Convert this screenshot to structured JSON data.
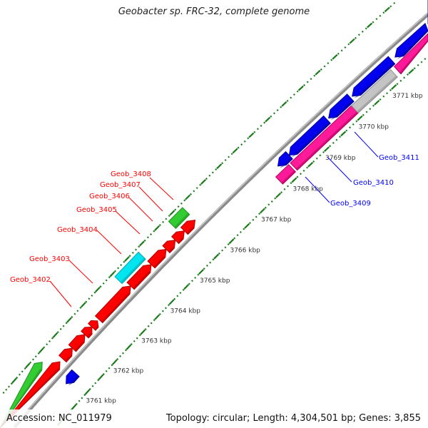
{
  "title": "Geobacter sp. FRC-32, complete genome",
  "footer": {
    "accession": "Accession: NC_011979",
    "summary": "Topology: circular; Length: 4,304,501 bp; Genes: 3,855"
  },
  "colors": {
    "backbone": "#8a8a8a",
    "ticks": "#1a7a1a",
    "forward_label": "#ff0000",
    "reverse_label": "#0000ff",
    "red": "#ff0000",
    "green": "#33cc33",
    "cyan": "#00e5f0",
    "blue": "#0000ee",
    "pink": "#ff1a99",
    "grey": "#c4c4c4"
  },
  "ticks": [
    {
      "kbp": 3761,
      "label": "3761 kbp"
    },
    {
      "kbp": 3762,
      "label": "3762 kbp"
    },
    {
      "kbp": 3763,
      "label": "3763 kbp"
    },
    {
      "kbp": 3764,
      "label": "3764 kbp"
    },
    {
      "kbp": 3765,
      "label": "3765 kbp"
    },
    {
      "kbp": 3766,
      "label": "3766 kbp"
    },
    {
      "kbp": 3767,
      "label": "3767 kbp"
    },
    {
      "kbp": 3768,
      "label": "3768 kbp"
    },
    {
      "kbp": 3769,
      "label": "3769 kbp"
    },
    {
      "kbp": 3770,
      "label": "3770 kbp"
    },
    {
      "kbp": 3771,
      "label": "3771 kbp"
    }
  ],
  "genes": [
    {
      "start": 3758.5,
      "end": 3760.8,
      "lane": "outer-forward",
      "strand": "+",
      "color": "green"
    },
    {
      "start": 3758.5,
      "end": 3761.1,
      "lane": "inner-forward",
      "strand": "+",
      "color": "red"
    },
    {
      "start": 3761.2,
      "end": 3761.55,
      "lane": "inner-forward",
      "strand": "+",
      "color": "red"
    },
    {
      "start": 3761.55,
      "end": 3762.0,
      "lane": "inner-forward",
      "strand": "+",
      "color": "red"
    },
    {
      "start": 3762.0,
      "end": 3762.25,
      "lane": "inner-forward",
      "strand": "+",
      "color": "red"
    },
    {
      "start": 3762.25,
      "end": 3762.45,
      "lane": "inner-forward",
      "strand": "+",
      "color": "red"
    },
    {
      "start": 3762.5,
      "end": 3763.6,
      "lane": "inner-forward",
      "strand": "+",
      "color": "red"
    },
    {
      "start": 3763.6,
      "end": 3764.3,
      "lane": "inner-forward",
      "strand": "+",
      "color": "red"
    },
    {
      "start": 3764.3,
      "end": 3764.8,
      "lane": "inner-forward",
      "strand": "+",
      "color": "red"
    },
    {
      "start": 3764.8,
      "end": 3765.1,
      "lane": "inner-forward",
      "strand": "+",
      "color": "red"
    },
    {
      "start": 3765.1,
      "end": 3765.4,
      "lane": "inner-forward",
      "strand": "+",
      "color": "red"
    },
    {
      "start": 3765.4,
      "end": 3765.75,
      "lane": "inner-forward",
      "strand": "+",
      "color": "red"
    },
    {
      "start": 3763.5,
      "end": 3764.3,
      "lane": "outer-forward",
      "strand": "",
      "color": "cyan"
    },
    {
      "start": 3765.3,
      "end": 3765.75,
      "lane": "outer-forward",
      "strand": "",
      "color": "green"
    },
    {
      "start": 3760.8,
      "end": 3761.15,
      "lane": "inner-reverse",
      "strand": "-",
      "color": "blue"
    },
    {
      "start": 3767.95,
      "end": 3768.3,
      "lane": "inner-reverse",
      "strand": "-",
      "color": "blue"
    },
    {
      "start": 3768.3,
      "end": 3769.45,
      "lane": "inner-reverse",
      "strand": "-",
      "color": "blue"
    },
    {
      "start": 3769.5,
      "end": 3770.15,
      "lane": "inner-reverse",
      "strand": "-",
      "color": "blue"
    },
    {
      "start": 3770.2,
      "end": 3771.35,
      "lane": "inner-reverse",
      "strand": "-",
      "color": "blue"
    },
    {
      "start": 3771.45,
      "end": 3772.4,
      "lane": "inner-reverse",
      "strand": "-",
      "color": "blue"
    },
    {
      "start": 3772.5,
      "end": 3773.4,
      "lane": "inner-reverse",
      "strand": "-",
      "color": "blue"
    },
    {
      "start": 3767.75,
      "end": 3768.15,
      "lane": "outer-reverse",
      "strand": "",
      "color": "pink"
    },
    {
      "start": 3768.2,
      "end": 3770.05,
      "lane": "outer-reverse",
      "strand": "",
      "color": "pink"
    },
    {
      "start": 3770.05,
      "end": 3771.2,
      "lane": "outer-reverse",
      "strand": "",
      "color": "grey"
    },
    {
      "start": 3771.3,
      "end": 3772.35,
      "lane": "outer-reverse",
      "strand": "",
      "color": "pink"
    }
  ],
  "labels": [
    {
      "text": "Geob_3402",
      "strand": "+"
    },
    {
      "text": "Geob_3403",
      "strand": "+"
    },
    {
      "text": "Geob_3404",
      "strand": "+"
    },
    {
      "text": "Geob_3405",
      "strand": "+"
    },
    {
      "text": "Geob_3406",
      "strand": "+"
    },
    {
      "text": "Geob_3407",
      "strand": "+"
    },
    {
      "text": "Geob_3408",
      "strand": "+"
    },
    {
      "text": "Geob_3409",
      "strand": "-"
    },
    {
      "text": "Geob_3410",
      "strand": "-"
    },
    {
      "text": "Geob_3411",
      "strand": "-"
    }
  ]
}
